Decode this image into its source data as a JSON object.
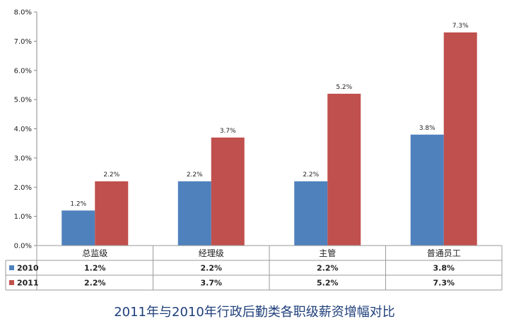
{
  "chart_data": {
    "type": "bar",
    "title": "2011年与2010年行政后勤类各职级薪资增幅对比",
    "categories": [
      "总监级",
      "经理级",
      "主管",
      "普通员工"
    ],
    "series": [
      {
        "name": "2010",
        "values": [
          1.2,
          2.2,
          2.2,
          3.8
        ],
        "labels": [
          "1.2%",
          "2.2%",
          "2.2%",
          "3.8%"
        ],
        "color": "#4f81bd"
      },
      {
        "name": "2011",
        "values": [
          2.2,
          3.7,
          5.2,
          7.3
        ],
        "labels": [
          "2.2%",
          "3.7%",
          "5.2%",
          "7.3%"
        ],
        "color": "#c0504d"
      }
    ],
    "ylim": [
      0,
      8
    ],
    "yticks": [
      "0.0%",
      "1.0%",
      "2.0%",
      "3.0%",
      "4.0%",
      "5.0%",
      "6.0%",
      "7.0%",
      "8.0%"
    ],
    "data_table": true,
    "legend": "data-table-left",
    "grid": false
  }
}
